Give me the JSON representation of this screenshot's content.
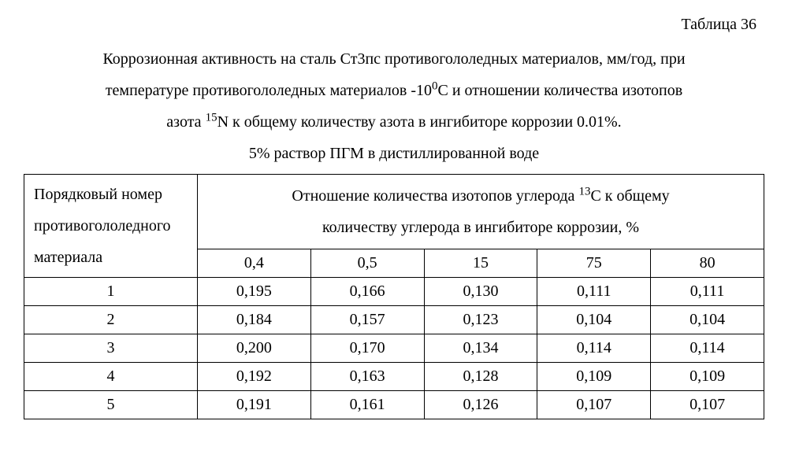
{
  "table_label": "Таблица 36",
  "caption_line1": "Коррозионная активность на сталь Ст3пс противогололедных материалов, мм/год, при",
  "caption_line2_a": "температуре противогололедных материалов -10",
  "caption_line2_sup": "0",
  "caption_line2_b": "С и отношении количества изотопов",
  "caption_line3_a": "азота ",
  "caption_line3_sup": "15",
  "caption_line3_b": "N  к общему количеству азота в ингибиторе коррозии 0.01%.",
  "caption_line4": "5% раствор ПГМ в дистиллированной воде",
  "row_header_l1": "Порядковый номер",
  "row_header_l2": "противогололедного",
  "row_header_l3": "материала",
  "span_header_a": "Отношение количества изотопов углерода ",
  "span_header_sup": "13",
  "span_header_b": "С к общему",
  "span_header_l2": "количеству углерода в ингибиторе коррозии, %",
  "columns": [
    "0,4",
    "0,5",
    "15",
    "75",
    "80"
  ],
  "rows": [
    {
      "idx": "1",
      "vals": [
        "0,195",
        "0,166",
        "0,130",
        "0,111",
        "0,111"
      ]
    },
    {
      "idx": "2",
      "vals": [
        "0,184",
        "0,157",
        "0,123",
        "0,104",
        "0,104"
      ]
    },
    {
      "idx": "3",
      "vals": [
        "0,200",
        "0,170",
        "0,134",
        "0,114",
        "0,114"
      ]
    },
    {
      "idx": "4",
      "vals": [
        "0,192",
        "0,163",
        "0,128",
        "0,109",
        "0,109"
      ]
    },
    {
      "idx": "5",
      "vals": [
        "0,191",
        "0,161",
        "0,126",
        "0,107",
        "0,107"
      ]
    }
  ]
}
